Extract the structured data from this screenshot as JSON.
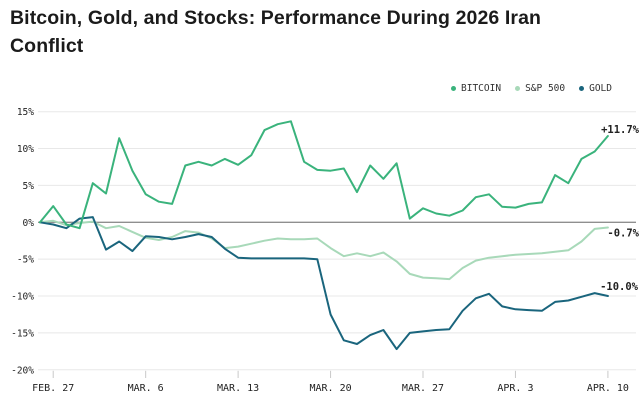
{
  "chart_data": {
    "type": "line",
    "title": "Bitcoin, Gold, and Stocks: Performance During 2026 Iran Conflict",
    "ylabel": "",
    "xlabel": "",
    "ylim": [
      -20,
      15
    ],
    "grid": true,
    "legend_position": "top-right",
    "y_tick_labels": [
      "15%",
      "10%",
      "5%",
      "0%",
      "-5%",
      "-10%",
      "-15%",
      "-20%"
    ],
    "x_tick_labels": [
      "FEB. 27",
      "MAR. 6",
      "MAR. 13",
      "MAR. 20",
      "MAR. 27",
      "APR. 3",
      "APR. 10"
    ],
    "x": [
      "FEB. 26",
      "FEB. 27",
      "FEB. 28",
      "MAR. 1",
      "MAR. 2",
      "MAR. 3",
      "MAR. 4",
      "MAR. 5",
      "MAR. 6",
      "MAR. 7",
      "MAR. 8",
      "MAR. 9",
      "MAR. 10",
      "MAR. 11",
      "MAR. 12",
      "MAR. 13",
      "MAR. 14",
      "MAR. 15",
      "MAR. 16",
      "MAR. 17",
      "MAR. 18",
      "MAR. 19",
      "MAR. 20",
      "MAR. 21",
      "MAR. 22",
      "MAR. 23",
      "MAR. 24",
      "MAR. 25",
      "MAR. 26",
      "MAR. 27",
      "MAR. 28",
      "MAR. 29",
      "MAR. 30",
      "MAR. 31",
      "APR. 1",
      "APR. 2",
      "APR. 3",
      "APR. 4",
      "APR. 5",
      "APR. 6",
      "APR. 7",
      "APR. 8",
      "APR. 9",
      "APR. 10"
    ],
    "series": [
      {
        "name": "BITCOIN",
        "color": "#3ab37c",
        "end_label": "+11.7%",
        "values": [
          0.0,
          2.2,
          -0.3,
          -0.8,
          5.3,
          3.9,
          11.4,
          7.0,
          3.8,
          2.8,
          2.5,
          7.7,
          8.2,
          7.7,
          8.6,
          7.8,
          9.1,
          12.5,
          13.3,
          13.7,
          8.2,
          7.1,
          7.0,
          7.3,
          4.1,
          7.7,
          5.9,
          8.0,
          0.5,
          1.9,
          1.2,
          0.9,
          1.6,
          3.4,
          3.8,
          2.1,
          2.0,
          2.5,
          2.7,
          6.4,
          5.3,
          8.6,
          9.6,
          11.7
        ]
      },
      {
        "name": "S&P 500",
        "color": "#a8d9b9",
        "end_label": "-0.7%",
        "values": [
          0.0,
          0.2,
          -0.4,
          -0.1,
          0.1,
          -0.8,
          -0.5,
          -1.3,
          -2.1,
          -2.4,
          -2.0,
          -1.2,
          -1.4,
          -2.2,
          -3.5,
          -3.3,
          -2.9,
          -2.5,
          -2.2,
          -2.3,
          -2.3,
          -2.2,
          -3.5,
          -4.6,
          -4.2,
          -4.6,
          -4.1,
          -5.3,
          -7.0,
          -7.5,
          -7.6,
          -7.7,
          -6.2,
          -5.2,
          -4.8,
          -4.6,
          -4.4,
          -4.3,
          -4.2,
          -4.0,
          -3.8,
          -2.6,
          -0.9,
          -0.7
        ]
      },
      {
        "name": "GOLD",
        "color": "#1a657d",
        "end_label": "-10.0%",
        "values": [
          0.0,
          -0.3,
          -0.8,
          0.5,
          0.7,
          -3.7,
          -2.6,
          -3.9,
          -1.9,
          -2.0,
          -2.3,
          -2.0,
          -1.6,
          -2.0,
          -3.6,
          -4.8,
          -4.9,
          -4.9,
          -4.9,
          -4.9,
          -4.9,
          -5.0,
          -12.5,
          -16.0,
          -16.5,
          -15.3,
          -14.6,
          -17.2,
          -15.0,
          -14.8,
          -14.6,
          -14.5,
          -12.0,
          -10.3,
          -9.7,
          -11.4,
          -11.8,
          -11.9,
          -12.0,
          -10.8,
          -10.6,
          -10.1,
          -9.6,
          -10.0
        ]
      }
    ]
  }
}
